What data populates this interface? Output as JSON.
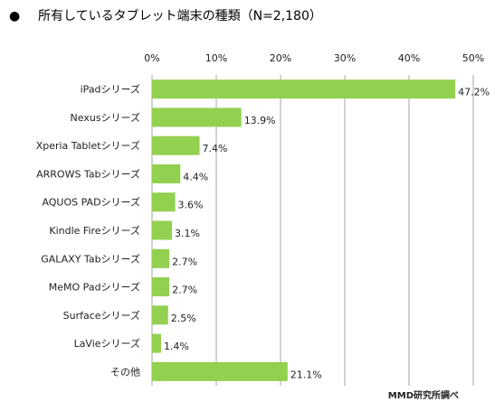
{
  "chart_data": {
    "type": "bar",
    "orientation": "horizontal",
    "title": "所有しているタブレット端末の種類（N=2,180）",
    "title_bullet": "●",
    "categories": [
      "iPadシリーズ",
      "Nexusシリーズ",
      "Xperia Tabletシリーズ",
      "ARROWS Tabシリーズ",
      "AQUOS PADシリーズ",
      "Kindle Fireシリーズ",
      "GALAXY Tabシリーズ",
      "MeMO Padシリーズ",
      "Surfaceシリーズ",
      "LaVieシリーズ",
      "その他"
    ],
    "values": [
      47.2,
      13.9,
      7.4,
      4.4,
      3.6,
      3.1,
      2.7,
      2.7,
      2.5,
      1.4,
      21.1
    ],
    "value_labels": [
      "47.2%",
      "13.9%",
      "7.4%",
      "4.4%",
      "3.6%",
      "3.1%",
      "2.7%",
      "2.7%",
      "2.5%",
      "1.4%",
      "21.1%"
    ],
    "xlim": [
      0,
      50
    ],
    "xticks": [
      "0%",
      "10%",
      "20%",
      "30%",
      "40%",
      "50%"
    ],
    "grid": "vertical",
    "bar_color": "#92d050",
    "grid_color": "#a6a6a6",
    "source": "MMD研究所調べ"
  }
}
